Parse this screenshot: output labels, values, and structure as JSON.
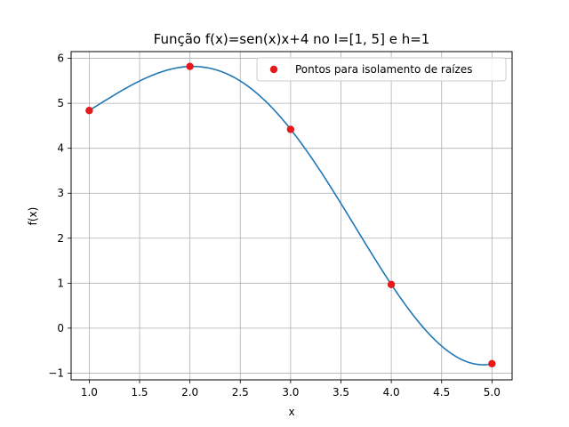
{
  "chart_data": {
    "type": "line",
    "title": "Função f(x)=sen(x)x+4 no I=[1, 5] e h=1",
    "xlabel": "x",
    "ylabel": "f(x)",
    "xlim": [
      0.82,
      5.2
    ],
    "ylim": [
      -1.15,
      6.15
    ],
    "xticks": [
      1.0,
      1.5,
      2.0,
      2.5,
      3.0,
      3.5,
      4.0,
      4.5,
      5.0
    ],
    "xtick_labels": [
      "1.0",
      "1.5",
      "2.0",
      "2.5",
      "3.0",
      "3.5",
      "4.0",
      "4.5",
      "5.0"
    ],
    "yticks": [
      -1,
      0,
      1,
      2,
      3,
      4,
      5,
      6
    ],
    "ytick_labels": [
      "−1",
      "0",
      "1",
      "2",
      "3",
      "4",
      "5",
      "6"
    ],
    "grid": true,
    "legend_position": "top-right",
    "curve": {
      "function": "sin(x)*x+4",
      "x_range": [
        1,
        5
      ],
      "color": "#1f77b4"
    },
    "series": [
      {
        "name": "Pontos para isolamento de raízes",
        "type": "scatter",
        "color": "#e41a1c",
        "x": [
          1,
          2,
          3,
          4,
          5
        ],
        "y": [
          4.84,
          5.82,
          4.42,
          0.97,
          -0.79
        ]
      }
    ]
  }
}
